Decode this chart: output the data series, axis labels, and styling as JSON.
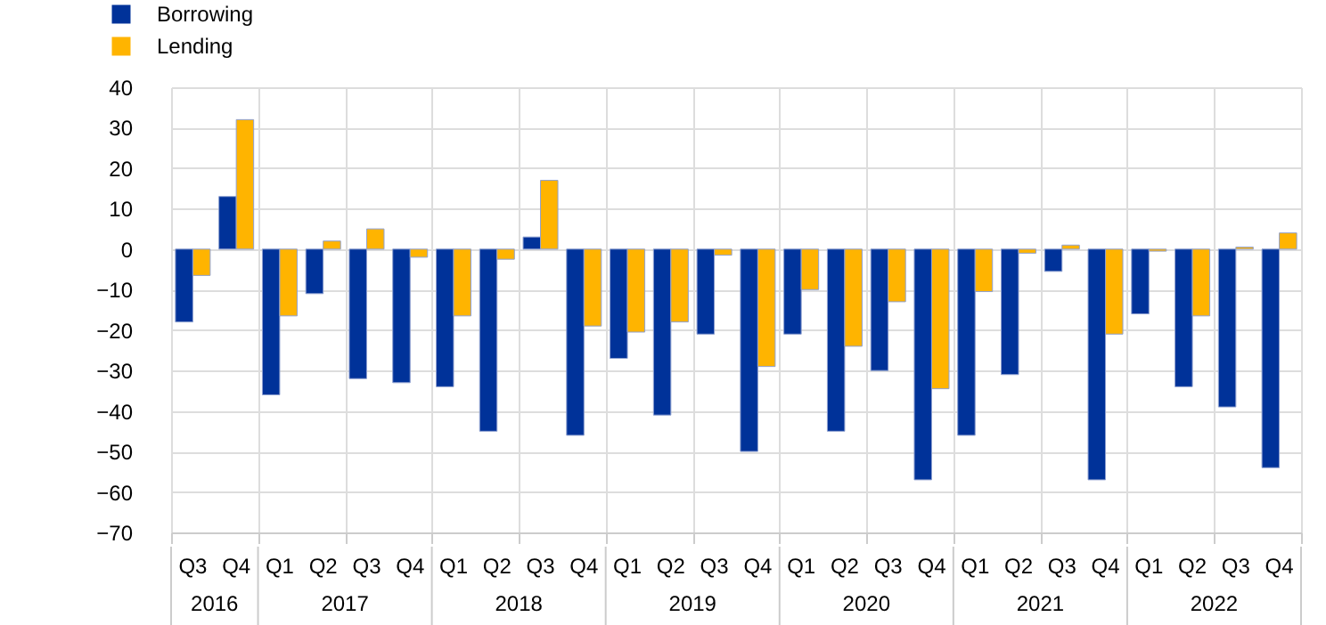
{
  "chart_data": {
    "type": "bar",
    "categories": [
      "Q3",
      "Q4",
      "Q1",
      "Q2",
      "Q3",
      "Q4",
      "Q1",
      "Q2",
      "Q3",
      "Q4",
      "Q1",
      "Q2",
      "Q3",
      "Q4",
      "Q1",
      "Q2",
      "Q3",
      "Q4",
      "Q1",
      "Q2",
      "Q3",
      "Q4",
      "Q1",
      "Q2",
      "Q3",
      "Q4"
    ],
    "series": [
      {
        "name": "Borrowing",
        "color": "#003299",
        "values": [
          -18,
          13,
          -36,
          -11,
          -32,
          -33,
          -34,
          -45,
          3,
          -46,
          -27,
          -41,
          -21,
          -50,
          -21,
          -45,
          -30,
          -57,
          -46,
          -31,
          -5.5,
          -57,
          -16,
          -34,
          -39,
          -54
        ]
      },
      {
        "name": "Lending",
        "color": "#ffb400",
        "values": [
          -6.5,
          32,
          -16.5,
          2,
          5,
          -2,
          -16.5,
          -2.5,
          17,
          -19,
          -20.5,
          -18,
          -1.5,
          -29,
          -10,
          -24,
          -13,
          -34.5,
          -10.5,
          -1,
          1,
          -21,
          -0.5,
          -16.5,
          0.5,
          4
        ]
      }
    ],
    "annotations": [
      "2016",
      "2017",
      "2018",
      "2019",
      "2020",
      "2021",
      "2022"
    ],
    "ylim": [
      -70,
      40
    ],
    "yticks": [
      -70,
      -60,
      -50,
      -40,
      -30,
      -20,
      -10,
      0,
      10,
      20,
      30,
      40
    ],
    "grid": true,
    "legend": "top left"
  }
}
